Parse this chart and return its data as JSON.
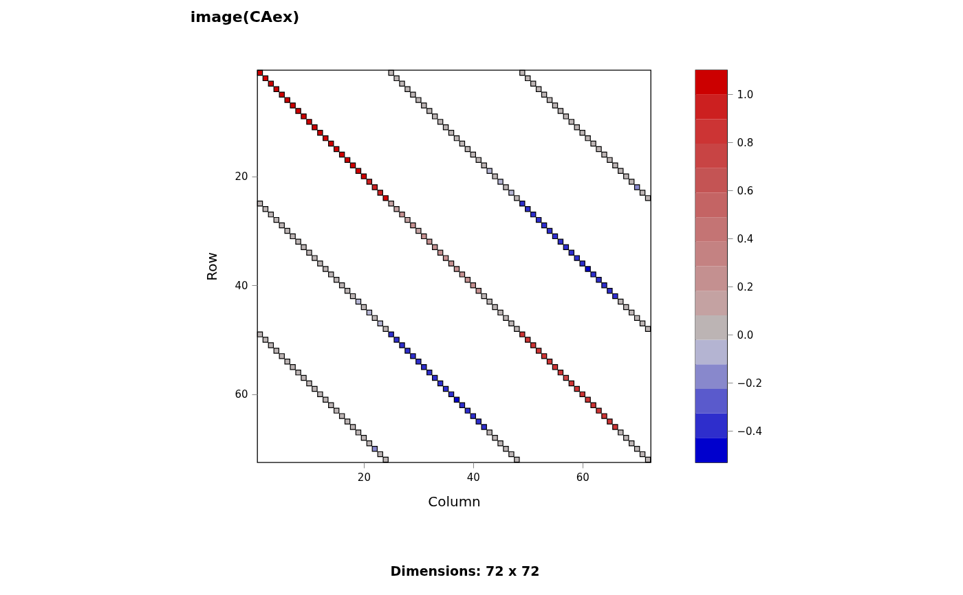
{
  "chart_data": {
    "type": "scatter",
    "title": "image(CAex)",
    "xlabel": "Column",
    "ylabel": "Row",
    "annotations": [
      "Dimensions: 72 x 72"
    ],
    "marker": "square",
    "xlim": [
      0.5,
      72.5
    ],
    "ylim": [
      72.5,
      0.5
    ],
    "xticks": [
      20,
      40,
      60
    ],
    "yticks": [
      20,
      40,
      60
    ],
    "clim": [
      -0.53,
      1.1
    ],
    "cticks": [
      -0.4,
      -0.2,
      {
        "value": 0,
        "label": "0.0"
      },
      0.2,
      0.4,
      0.6,
      0.8,
      {
        "value": 1,
        "label": "1.0"
      }
    ],
    "x": [
      1,
      2,
      3,
      4,
      5,
      6,
      7,
      8,
      9,
      10,
      11,
      12,
      13,
      14,
      15,
      16,
      17,
      18,
      19,
      20,
      21,
      22,
      23,
      24,
      25,
      26,
      27,
      28,
      29,
      30,
      31,
      32,
      33,
      34,
      35,
      36,
      37,
      38,
      39,
      40,
      41,
      42,
      43,
      44,
      45,
      46,
      47,
      48,
      49,
      50,
      51,
      52,
      53,
      54,
      55,
      56,
      57,
      58,
      59,
      60,
      61,
      62,
      63,
      64,
      65,
      66,
      67,
      68,
      69,
      70,
      71,
      72,
      25,
      26,
      27,
      28,
      29,
      30,
      31,
      32,
      33,
      34,
      35,
      36,
      37,
      38,
      39,
      40,
      41,
      42,
      43,
      44,
      45,
      46,
      47,
      48,
      49,
      50,
      51,
      52,
      53,
      54,
      55,
      56,
      57,
      58,
      59,
      60,
      61,
      62,
      63,
      64,
      65,
      66,
      67,
      68,
      69,
      70,
      71,
      72,
      49,
      50,
      51,
      52,
      53,
      54,
      55,
      56,
      57,
      58,
      59,
      60,
      61,
      62,
      63,
      64,
      65,
      66,
      67,
      68,
      69,
      70,
      71,
      72,
      1,
      2,
      3,
      4,
      5,
      6,
      7,
      8,
      9,
      10,
      11,
      12,
      13,
      14,
      15,
      16,
      17,
      18,
      19,
      20,
      21,
      22,
      23,
      24,
      25,
      26,
      27,
      28,
      29,
      30,
      31,
      32,
      33,
      34,
      35,
      36,
      37,
      38,
      39,
      40,
      41,
      42,
      43,
      44,
      45,
      46,
      47,
      48,
      1,
      2,
      3,
      4,
      5,
      6,
      7,
      8,
      9,
      10,
      11,
      12,
      13,
      14,
      15,
      16,
      17,
      18,
      19,
      20,
      21,
      22,
      23,
      24
    ],
    "values": [
      1,
      2,
      3,
      4,
      5,
      6,
      7,
      8,
      9,
      10,
      11,
      12,
      13,
      14,
      15,
      16,
      17,
      18,
      19,
      20,
      21,
      22,
      23,
      24,
      25,
      26,
      27,
      28,
      29,
      30,
      31,
      32,
      33,
      34,
      35,
      36,
      37,
      38,
      39,
      40,
      41,
      42,
      43,
      44,
      45,
      46,
      47,
      48,
      49,
      50,
      51,
      52,
      53,
      54,
      55,
      56,
      57,
      58,
      59,
      60,
      61,
      62,
      63,
      64,
      65,
      66,
      67,
      68,
      69,
      70,
      71,
      72,
      1,
      2,
      3,
      4,
      5,
      6,
      7,
      8,
      9,
      10,
      11,
      12,
      13,
      14,
      15,
      16,
      17,
      18,
      19,
      20,
      21,
      22,
      23,
      24,
      25,
      26,
      27,
      28,
      29,
      30,
      31,
      32,
      33,
      34,
      35,
      36,
      37,
      38,
      39,
      40,
      41,
      42,
      43,
      44,
      45,
      46,
      47,
      48,
      1,
      2,
      3,
      4,
      5,
      6,
      7,
      8,
      9,
      10,
      11,
      12,
      13,
      14,
      15,
      16,
      17,
      18,
      19,
      20,
      21,
      22,
      23,
      24,
      25,
      26,
      27,
      28,
      29,
      30,
      31,
      32,
      33,
      34,
      35,
      36,
      37,
      38,
      39,
      40,
      41,
      42,
      43,
      44,
      45,
      46,
      47,
      48,
      49,
      50,
      51,
      52,
      53,
      54,
      55,
      56,
      57,
      58,
      59,
      60,
      61,
      62,
      63,
      64,
      65,
      66,
      67,
      68,
      69,
      70,
      71,
      72,
      49,
      50,
      51,
      52,
      53,
      54,
      55,
      56,
      57,
      58,
      59,
      60,
      61,
      62,
      63,
      64,
      65,
      66,
      67,
      68,
      69,
      70,
      71,
      72
    ],
    "cvalues": [
      1.05,
      1.05,
      1.05,
      1.05,
      1.05,
      1.05,
      1.05,
      1.05,
      1.05,
      1.05,
      1.05,
      1.05,
      1.05,
      1.05,
      1.05,
      1.05,
      1.05,
      1.05,
      1.05,
      1.05,
      0.95,
      0.95,
      0.95,
      1.05,
      0.15,
      0.15,
      0.25,
      0.15,
      0.25,
      0.15,
      0.25,
      0.25,
      0.25,
      0.25,
      0.25,
      0.25,
      0.25,
      0.25,
      0.25,
      0.25,
      0.25,
      0.05,
      0.05,
      0.05,
      0.05,
      0.05,
      0.05,
      0.05,
      0.85,
      0.85,
      0.85,
      0.85,
      0.85,
      0.85,
      0.85,
      0.85,
      0.75,
      0.85,
      0.85,
      0.85,
      0.85,
      0.85,
      0.85,
      0.85,
      0.85,
      0.85,
      0.05,
      0.05,
      0.05,
      0.05,
      0.05,
      0.05,
      0.05,
      0.05,
      0.05,
      0.05,
      0.05,
      0.05,
      0.05,
      0.05,
      0.05,
      0.05,
      0.05,
      0.05,
      0.05,
      0.05,
      0.05,
      0.05,
      0.05,
      0.05,
      -0.05,
      0.05,
      -0.05,
      0.05,
      -0.05,
      0.05,
      -0.35,
      -0.35,
      -0.35,
      -0.35,
      -0.35,
      -0.35,
      -0.35,
      -0.35,
      -0.35,
      -0.35,
      -0.35,
      -0.35,
      -0.45,
      -0.35,
      -0.35,
      -0.35,
      -0.35,
      -0.35,
      0.05,
      0.05,
      0.05,
      0.05,
      0.05,
      0.05,
      0.05,
      0.05,
      0.05,
      0.05,
      0.05,
      0.05,
      0.05,
      0.05,
      0.05,
      0.05,
      0.05,
      0.05,
      0.05,
      0.05,
      0.05,
      0.05,
      0.05,
      0.05,
      0.05,
      0.05,
      0.05,
      -0.15,
      0.05,
      0.05,
      0.05,
      0.05,
      0.05,
      0.05,
      0.05,
      0.05,
      0.05,
      0.05,
      0.05,
      0.05,
      0.05,
      0.05,
      0.05,
      0.05,
      0.05,
      0.05,
      0.05,
      0.05,
      -0.05,
      0.05,
      -0.05,
      0.05,
      -0.05,
      0.05,
      -0.35,
      -0.35,
      -0.35,
      -0.35,
      -0.35,
      -0.35,
      -0.35,
      -0.35,
      -0.35,
      -0.35,
      -0.35,
      -0.35,
      -0.45,
      -0.35,
      -0.35,
      -0.35,
      -0.35,
      -0.35,
      0.05,
      0.05,
      0.05,
      0.05,
      0.05,
      0.05,
      0.05,
      0.05,
      0.05,
      0.05,
      0.05,
      0.05,
      0.05,
      0.05,
      0.05,
      0.05,
      0.05,
      0.05,
      0.05,
      0.05,
      0.05,
      0.05,
      0.05,
      0.05,
      0.05,
      0.05,
      0.05,
      -0.15,
      0.05,
      0.05
    ]
  }
}
